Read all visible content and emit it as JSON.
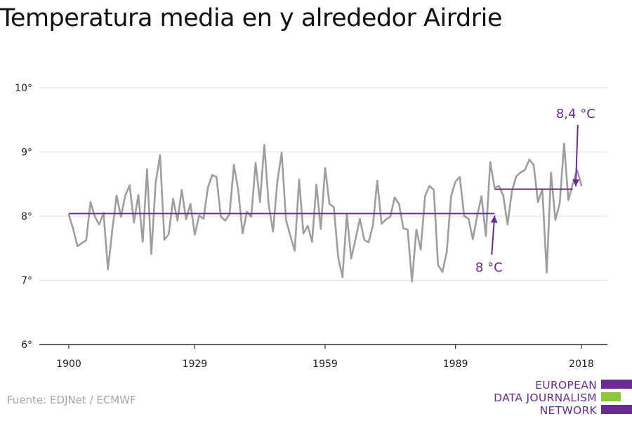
{
  "title": "Temperatura media en y alrededor Airdrie",
  "source": "Fuente: EDJNet / ECMWF",
  "logo": {
    "lines": [
      "EUROPEAN",
      "DATA JOURNALISM",
      "NETWORK"
    ],
    "colors": [
      "#6a2c91",
      "#8cc63f",
      "#6a2c91"
    ]
  },
  "colors": {
    "series": "#9e9e9e",
    "accent": "#6a2c91",
    "grid": "#dddddd",
    "axis": "#333333",
    "text": "#222222"
  },
  "chart_data": {
    "type": "line",
    "xlim": [
      1900,
      2018
    ],
    "ylim": [
      6,
      10
    ],
    "x_ticks": [
      1900,
      1929,
      1959,
      1989,
      2018
    ],
    "x_tick_labels": [
      "1900",
      "1929",
      "1959",
      "1989",
      "2018"
    ],
    "y_ticks": [
      6,
      7,
      8,
      9,
      10
    ],
    "y_tick_labels": [
      "6°",
      "7°",
      "8°",
      "9°",
      "10°"
    ],
    "grid": true,
    "series": [
      {
        "x": [
          1900,
          1901,
          1902,
          1903,
          1904,
          1905,
          1906,
          1907,
          1908,
          1909,
          1910,
          1911,
          1912,
          1913,
          1914,
          1915,
          1916,
          1917,
          1918,
          1919,
          1920,
          1921,
          1922,
          1923,
          1924,
          1925,
          1926,
          1927,
          1928,
          1929,
          1930,
          1931,
          1932,
          1933,
          1934,
          1935,
          1936,
          1937,
          1938,
          1939,
          1940,
          1941,
          1942,
          1943,
          1944,
          1945,
          1946,
          1947,
          1948,
          1949,
          1950,
          1951,
          1952,
          1953,
          1954,
          1955,
          1956,
          1957,
          1958,
          1959,
          1960,
          1961,
          1962,
          1963,
          1964,
          1965,
          1966,
          1967,
          1968,
          1969,
          1970,
          1971,
          1972,
          1973,
          1974,
          1975,
          1976,
          1977,
          1978,
          1979,
          1980,
          1981,
          1982,
          1983,
          1984,
          1985,
          1986,
          1987,
          1988,
          1989,
          1990,
          1991,
          1992,
          1993,
          1994,
          1995,
          1996,
          1997,
          1998,
          1999,
          2000,
          2001,
          2002,
          2003,
          2004,
          2005,
          2006,
          2007,
          2008,
          2009,
          2010,
          2011,
          2012,
          2013,
          2014,
          2015,
          2016,
          2017,
          2018
        ],
        "values": [
          8.02,
          7.8,
          7.53,
          7.58,
          7.62,
          8.22,
          7.99,
          7.87,
          8.05,
          7.17,
          7.78,
          8.32,
          7.99,
          8.32,
          8.48,
          7.9,
          8.33,
          7.6,
          8.73,
          7.41,
          8.52,
          8.95,
          7.63,
          7.72,
          8.27,
          7.93,
          8.41,
          7.95,
          8.19,
          7.71,
          8.01,
          7.96,
          8.44,
          8.64,
          8.61,
          7.99,
          7.93,
          8.03,
          8.8,
          8.4,
          7.73,
          8.07,
          7.99,
          8.83,
          8.22,
          9.11,
          8.18,
          7.76,
          8.53,
          8.99,
          7.94,
          7.69,
          7.46,
          8.57,
          7.73,
          7.85,
          7.6,
          8.49,
          7.8,
          8.75,
          8.19,
          8.14,
          7.36,
          7.05,
          8.03,
          7.34,
          7.64,
          7.96,
          7.63,
          7.59,
          7.86,
          8.55,
          7.88,
          7.95,
          7.99,
          8.29,
          8.19,
          7.81,
          7.79,
          6.98,
          7.79,
          7.48,
          8.31,
          8.47,
          8.41,
          7.24,
          7.13,
          7.44,
          8.31,
          8.54,
          8.61,
          8.0,
          7.96,
          7.64,
          8.0,
          8.31,
          7.69,
          8.84,
          8.44,
          8.47,
          8.32,
          7.87,
          8.39,
          8.62,
          8.68,
          8.72,
          8.88,
          8.8,
          8.22,
          8.42,
          7.12,
          8.68,
          7.94,
          8.2,
          9.13,
          8.25,
          8.5,
          8.72,
          8.48
        ]
      }
    ],
    "averages": [
      {
        "label": "8 °C",
        "value": 8.04,
        "x_start": 1900,
        "x_end": 1998,
        "arrow_year": 1998
      },
      {
        "label": "8,4 °C",
        "value": 8.42,
        "x_start": 1998,
        "x_end": 2016,
        "arrow_year": 2017
      }
    ]
  }
}
